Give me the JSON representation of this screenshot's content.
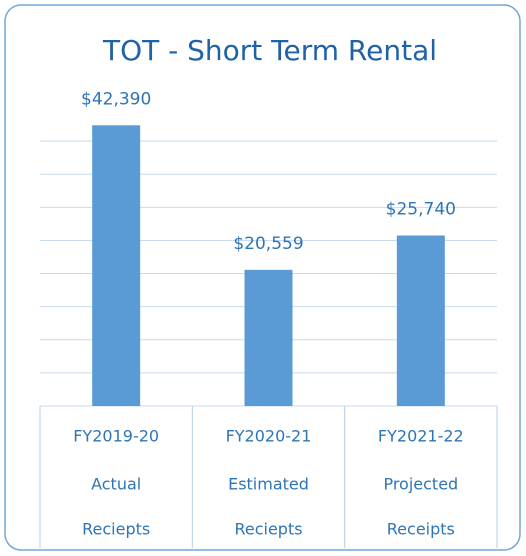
{
  "chart_data": {
    "type": "bar",
    "title": "TOT - Short Term Rental",
    "categories": [
      [
        "FY2019-20",
        "Actual",
        "Reciepts"
      ],
      [
        "FY2020-21",
        "Estimated",
        "Reciepts"
      ],
      [
        "FY2021-22",
        "Projected",
        "Receipts"
      ]
    ],
    "values": [
      42390,
      20559,
      25740
    ],
    "value_labels": [
      "$42,390",
      "$20,559",
      "$25,740"
    ],
    "color": "#5b9bd5",
    "ylim": [
      0,
      45000
    ],
    "yticks": [
      0,
      5000,
      10000,
      15000,
      20000,
      25000,
      30000,
      35000,
      40000
    ],
    "grid": true
  }
}
